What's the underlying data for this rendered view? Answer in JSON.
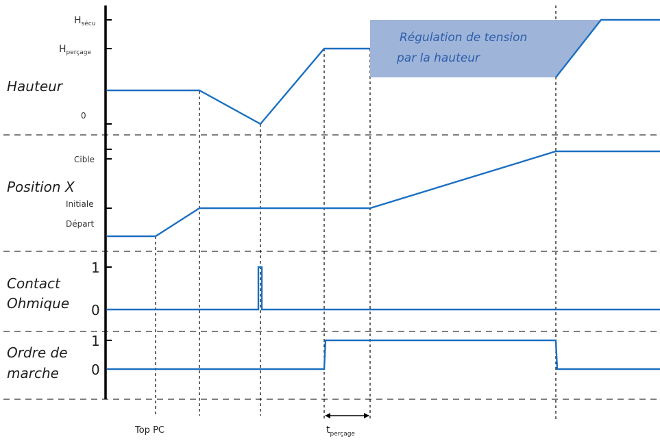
{
  "lanes": {
    "hauteur": {
      "title": "Hauteur",
      "levels": {
        "h_secu": "H",
        "h_secu_sub": "sécu",
        "h_percage": "H",
        "h_percage_sub": "perçage",
        "zero": "0"
      },
      "band_label_line1": "Régulation de tension",
      "band_label_line2": "par la hauteur"
    },
    "position_x": {
      "title": "Position X",
      "levels": {
        "cible": "Cible",
        "initiale": "Initiale",
        "depart": "Départ"
      }
    },
    "contact": {
      "title_line1": "Contact",
      "title_line2": "Ohmique",
      "levels": {
        "one": "1",
        "zero": "0"
      }
    },
    "ordre": {
      "title_line1": "Ordre de",
      "title_line2": "marche",
      "levels": {
        "one": "1",
        "zero": "0"
      }
    }
  },
  "markers": {
    "top_pc": "Top PC",
    "t_percage": "t",
    "t_percage_sub": "perçage"
  },
  "colors": {
    "signal": "#1b6fc1",
    "band_fill": "#9fb4d9",
    "axis": "#000000",
    "dashed": "#555555"
  }
}
